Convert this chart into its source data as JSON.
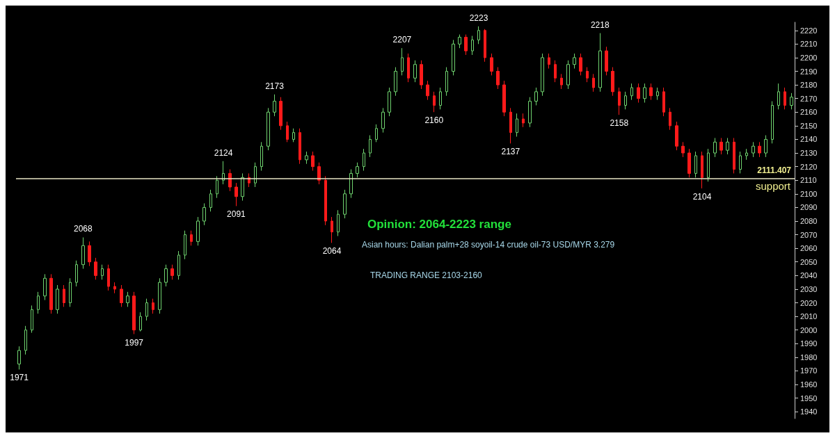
{
  "chart_data": {
    "type": "candlestick",
    "categories": [
      null,
      null,
      null,
      null,
      null,
      null,
      null,
      null,
      null,
      null,
      null,
      null,
      null,
      null,
      null,
      null,
      null,
      null,
      null,
      null,
      null,
      null,
      null,
      null,
      null,
      null,
      null,
      null,
      null,
      null,
      null,
      null,
      null,
      null,
      null,
      null,
      null,
      null,
      null,
      null,
      null,
      null,
      null,
      null,
      null,
      null,
      null,
      null,
      null,
      null,
      null,
      null,
      null,
      null,
      null,
      null,
      null,
      null,
      null,
      null,
      null,
      null,
      null,
      null,
      null,
      null,
      null,
      null,
      null,
      null,
      null,
      null,
      null,
      null,
      null,
      null,
      null,
      null,
      null,
      null,
      null,
      null,
      null,
      null,
      null,
      null,
      null,
      null,
      null,
      null,
      null,
      null,
      null,
      null,
      null,
      null,
      null,
      null,
      null,
      null,
      null,
      null,
      null,
      null,
      null,
      null,
      null,
      null,
      null,
      null,
      null,
      null,
      null,
      null,
      null,
      null,
      null,
      null,
      null,
      null,
      null,
      null
    ],
    "ohlc": [
      [
        1975,
        1988,
        1971,
        1985
      ],
      [
        1985,
        2003,
        1982,
        2000
      ],
      [
        2000,
        2018,
        1998,
        2015
      ],
      [
        2015,
        2028,
        2012,
        2025
      ],
      [
        2025,
        2041,
        2022,
        2038
      ],
      [
        2038,
        2041,
        2012,
        2015
      ],
      [
        2015,
        2033,
        2012,
        2030
      ],
      [
        2030,
        2033,
        2017,
        2020
      ],
      [
        2020,
        2038,
        2017,
        2035
      ],
      [
        2035,
        2051,
        2032,
        2048
      ],
      [
        2048,
        2068,
        2045,
        2062
      ],
      [
        2062,
        2065,
        2047,
        2050
      ],
      [
        2050,
        2053,
        2037,
        2040
      ],
      [
        2040,
        2048,
        2037,
        2045
      ],
      [
        2045,
        2048,
        2029,
        2032
      ],
      [
        2032,
        2035,
        2027,
        2030
      ],
      [
        2030,
        2033,
        2017,
        2020
      ],
      [
        2020,
        2028,
        2017,
        2025
      ],
      [
        2025,
        2028,
        1997,
        2000
      ],
      [
        2000,
        2013,
        1999,
        2010
      ],
      [
        2010,
        2023,
        2007,
        2020
      ],
      [
        2020,
        2023,
        2012,
        2015
      ],
      [
        2015,
        2038,
        2012,
        2035
      ],
      [
        2035,
        2048,
        2032,
        2045
      ],
      [
        2045,
        2048,
        2037,
        2040
      ],
      [
        2040,
        2058,
        2037,
        2055
      ],
      [
        2055,
        2073,
        2052,
        2070
      ],
      [
        2070,
        2073,
        2062,
        2065
      ],
      [
        2065,
        2083,
        2062,
        2080
      ],
      [
        2080,
        2093,
        2077,
        2090
      ],
      [
        2090,
        2103,
        2087,
        2100
      ],
      [
        2100,
        2113,
        2097,
        2110
      ],
      [
        2110,
        2124,
        2107,
        2115
      ],
      [
        2115,
        2118,
        2102,
        2105
      ],
      [
        2105,
        2108,
        2091,
        2098
      ],
      [
        2098,
        2115,
        2095,
        2112
      ],
      [
        2112,
        2115,
        2105,
        2108
      ],
      [
        2108,
        2123,
        2105,
        2120
      ],
      [
        2120,
        2138,
        2117,
        2135
      ],
      [
        2135,
        2163,
        2132,
        2160
      ],
      [
        2160,
        2173,
        2157,
        2168
      ],
      [
        2168,
        2171,
        2147,
        2150
      ],
      [
        2150,
        2153,
        2138,
        2140
      ],
      [
        2140,
        2148,
        2138,
        2145
      ],
      [
        2145,
        2148,
        2122,
        2125
      ],
      [
        2125,
        2131,
        2122,
        2128
      ],
      [
        2128,
        2131,
        2117,
        2120
      ],
      [
        2120,
        2123,
        2107,
        2110
      ],
      [
        2110,
        2113,
        2077,
        2080
      ],
      [
        2080,
        2083,
        2064,
        2072
      ],
      [
        2072,
        2088,
        2069,
        2085
      ],
      [
        2085,
        2103,
        2082,
        2100
      ],
      [
        2100,
        2118,
        2097,
        2115
      ],
      [
        2115,
        2123,
        2112,
        2120
      ],
      [
        2120,
        2133,
        2117,
        2130
      ],
      [
        2130,
        2143,
        2127,
        2140
      ],
      [
        2140,
        2151,
        2138,
        2148
      ],
      [
        2148,
        2163,
        2145,
        2160
      ],
      [
        2160,
        2178,
        2157,
        2175
      ],
      [
        2175,
        2193,
        2172,
        2190
      ],
      [
        2190,
        2207,
        2187,
        2200
      ],
      [
        2200,
        2203,
        2182,
        2185
      ],
      [
        2185,
        2198,
        2182,
        2195
      ],
      [
        2195,
        2198,
        2177,
        2180
      ],
      [
        2180,
        2183,
        2169,
        2172
      ],
      [
        2172,
        2175,
        2160,
        2165
      ],
      [
        2165,
        2178,
        2162,
        2175
      ],
      [
        2175,
        2193,
        2172,
        2190
      ],
      [
        2190,
        2213,
        2187,
        2210
      ],
      [
        2210,
        2217,
        2207,
        2215
      ],
      [
        2215,
        2217,
        2202,
        2205
      ],
      [
        2205,
        2216,
        2202,
        2213
      ],
      [
        2213,
        2223,
        2210,
        2220
      ],
      [
        2220,
        2221,
        2197,
        2200
      ],
      [
        2200,
        2203,
        2187,
        2190
      ],
      [
        2190,
        2193,
        2177,
        2180
      ],
      [
        2180,
        2183,
        2157,
        2160
      ],
      [
        2160,
        2163,
        2137,
        2145
      ],
      [
        2145,
        2159,
        2142,
        2155
      ],
      [
        2155,
        2159,
        2149,
        2152
      ],
      [
        2152,
        2171,
        2149,
        2168
      ],
      [
        2168,
        2178,
        2165,
        2175
      ],
      [
        2175,
        2203,
        2172,
        2200
      ],
      [
        2200,
        2203,
        2192,
        2195
      ],
      [
        2195,
        2198,
        2182,
        2185
      ],
      [
        2185,
        2188,
        2177,
        2180
      ],
      [
        2180,
        2198,
        2177,
        2195
      ],
      [
        2195,
        2203,
        2192,
        2200
      ],
      [
        2200,
        2203,
        2187,
        2190
      ],
      [
        2190,
        2193,
        2182,
        2185
      ],
      [
        2185,
        2188,
        2175,
        2178
      ],
      [
        2178,
        2218,
        2175,
        2205
      ],
      [
        2205,
        2208,
        2187,
        2190
      ],
      [
        2190,
        2193,
        2172,
        2175
      ],
      [
        2175,
        2178,
        2158,
        2165
      ],
      [
        2165,
        2175,
        2162,
        2172
      ],
      [
        2172,
        2181,
        2169,
        2178
      ],
      [
        2178,
        2181,
        2167,
        2170
      ],
      [
        2170,
        2181,
        2167,
        2178
      ],
      [
        2178,
        2181,
        2169,
        2172
      ],
      [
        2172,
        2178,
        2169,
        2175
      ],
      [
        2175,
        2178,
        2157,
        2160
      ],
      [
        2160,
        2163,
        2147,
        2150
      ],
      [
        2150,
        2153,
        2132,
        2135
      ],
      [
        2135,
        2138,
        2127,
        2130
      ],
      [
        2130,
        2133,
        2112,
        2115
      ],
      [
        2115,
        2131,
        2112,
        2128
      ],
      [
        2128,
        2131,
        2104,
        2112
      ],
      [
        2112,
        2133,
        2109,
        2130
      ],
      [
        2130,
        2141,
        2127,
        2138
      ],
      [
        2138,
        2141,
        2129,
        2132
      ],
      [
        2132,
        2141,
        2129,
        2138
      ],
      [
        2138,
        2141,
        2115,
        2118
      ],
      [
        2118,
        2131,
        2115,
        2128
      ],
      [
        2128,
        2133,
        2125,
        2130
      ],
      [
        2130,
        2138,
        2127,
        2135
      ],
      [
        2135,
        2138,
        2127,
        2130
      ],
      [
        2130,
        2143,
        2127,
        2140
      ],
      [
        2140,
        2168,
        2137,
        2165
      ],
      [
        2165,
        2181,
        2162,
        2175
      ],
      [
        2175,
        2178,
        2162,
        2165
      ],
      [
        2165,
        2174,
        2162,
        2171
      ]
    ],
    "ylim": [
      1935,
      2226
    ],
    "yticks": [
      1940,
      1950,
      1960,
      1970,
      1980,
      1990,
      2000,
      2010,
      2020,
      2030,
      2040,
      2050,
      2060,
      2070,
      2080,
      2090,
      2100,
      2110,
      2120,
      2130,
      2140,
      2150,
      2160,
      2170,
      2180,
      2190,
      2200,
      2210,
      2220
    ],
    "tick_labels": "y",
    "grid": false,
    "ref_lines": [
      {
        "axis": "y",
        "value": 2111.407,
        "label": "2111.407",
        "color": "#e8e6c4"
      }
    ],
    "annotations": [
      {
        "text": "1971",
        "y": 1971
      },
      {
        "text": "2068",
        "y": 2068
      },
      {
        "text": "1997",
        "y": 1997
      },
      {
        "text": "2124",
        "y": 2124
      },
      {
        "text": "2091",
        "y": 2091
      },
      {
        "text": "2173",
        "y": 2173
      },
      {
        "text": "2064",
        "y": 2064
      },
      {
        "text": "2207",
        "y": 2207
      },
      {
        "text": "2160",
        "y": 2160
      },
      {
        "text": "2223",
        "y": 2223
      },
      {
        "text": "2137",
        "y": 2137
      },
      {
        "text": "2218",
        "y": 2218
      },
      {
        "text": "2158",
        "y": 2158
      },
      {
        "text": "2104",
        "y": 2104
      },
      "Opinion: 2064-2223 range",
      "Asian hours: Dalian palm+28 soyoil-14 crude oil-73 USD/MYR 3.279",
      "TRADING RANGE 2103-2160",
      "support"
    ]
  }
}
